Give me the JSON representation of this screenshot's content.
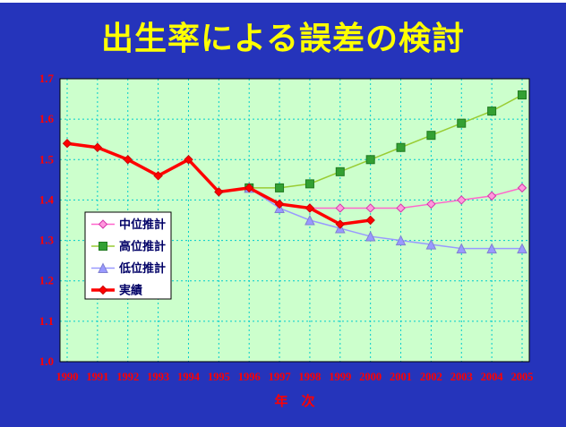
{
  "title": "出生率による誤差の検討",
  "colors": {
    "background": "#2534bb",
    "title": "#ffff00",
    "plot_background": "#ccffcc",
    "gridline": "#00cccc",
    "axis_text": "#ff0000",
    "legend_text": "#000066",
    "legend_background": "#ffffff",
    "plot_border": "#000000"
  },
  "chart_data": {
    "type": "line",
    "title": "出生率による誤差の検討",
    "xlabel": "年　次",
    "ylabel": "",
    "ylim": [
      1.0,
      1.7
    ],
    "ytick_step": 0.1,
    "grid": true,
    "legend_position": "middle-left",
    "x": [
      1990,
      1991,
      1992,
      1993,
      1994,
      1995,
      1996,
      1997,
      1998,
      1999,
      2000,
      2001,
      2002,
      2003,
      2004,
      2005
    ],
    "series": [
      {
        "name": "中位推計",
        "marker": "diamond",
        "line_color": "#ff66cc",
        "marker_fill": "#ff99dd",
        "marker_stroke": "#d633aa",
        "line_width": 1.5,
        "marker_size": 4.5,
        "values": [
          null,
          null,
          null,
          null,
          null,
          null,
          1.43,
          1.39,
          1.38,
          1.38,
          1.38,
          1.38,
          1.39,
          1.4,
          1.41,
          1.43
        ]
      },
      {
        "name": "高位推計",
        "marker": "square",
        "line_color": "#99cc33",
        "marker_fill": "#33a033",
        "marker_stroke": "#1f7a1f",
        "line_width": 1.5,
        "marker_size": 4.5,
        "values": [
          null,
          null,
          null,
          null,
          null,
          null,
          1.43,
          1.43,
          1.44,
          1.47,
          1.5,
          1.53,
          1.56,
          1.59,
          1.62,
          1.66
        ]
      },
      {
        "name": "低位推計",
        "marker": "triangle",
        "line_color": "#9999ff",
        "marker_fill": "#9999ff",
        "marker_stroke": "#8080d0",
        "line_width": 1.5,
        "marker_size": 5,
        "values": [
          null,
          null,
          null,
          null,
          null,
          null,
          1.43,
          1.38,
          1.35,
          1.33,
          1.31,
          1.3,
          1.29,
          1.28,
          1.28,
          1.28
        ]
      },
      {
        "name": "実績",
        "marker": "diamond",
        "line_color": "#ff0000",
        "marker_fill": "#ff0000",
        "marker_stroke": "#cc0000",
        "line_width": 3.5,
        "marker_size": 4.5,
        "values": [
          1.54,
          1.53,
          1.5,
          1.46,
          1.5,
          1.42,
          1.43,
          1.39,
          1.38,
          1.34,
          1.35,
          null,
          null,
          null,
          null,
          null
        ]
      }
    ]
  }
}
